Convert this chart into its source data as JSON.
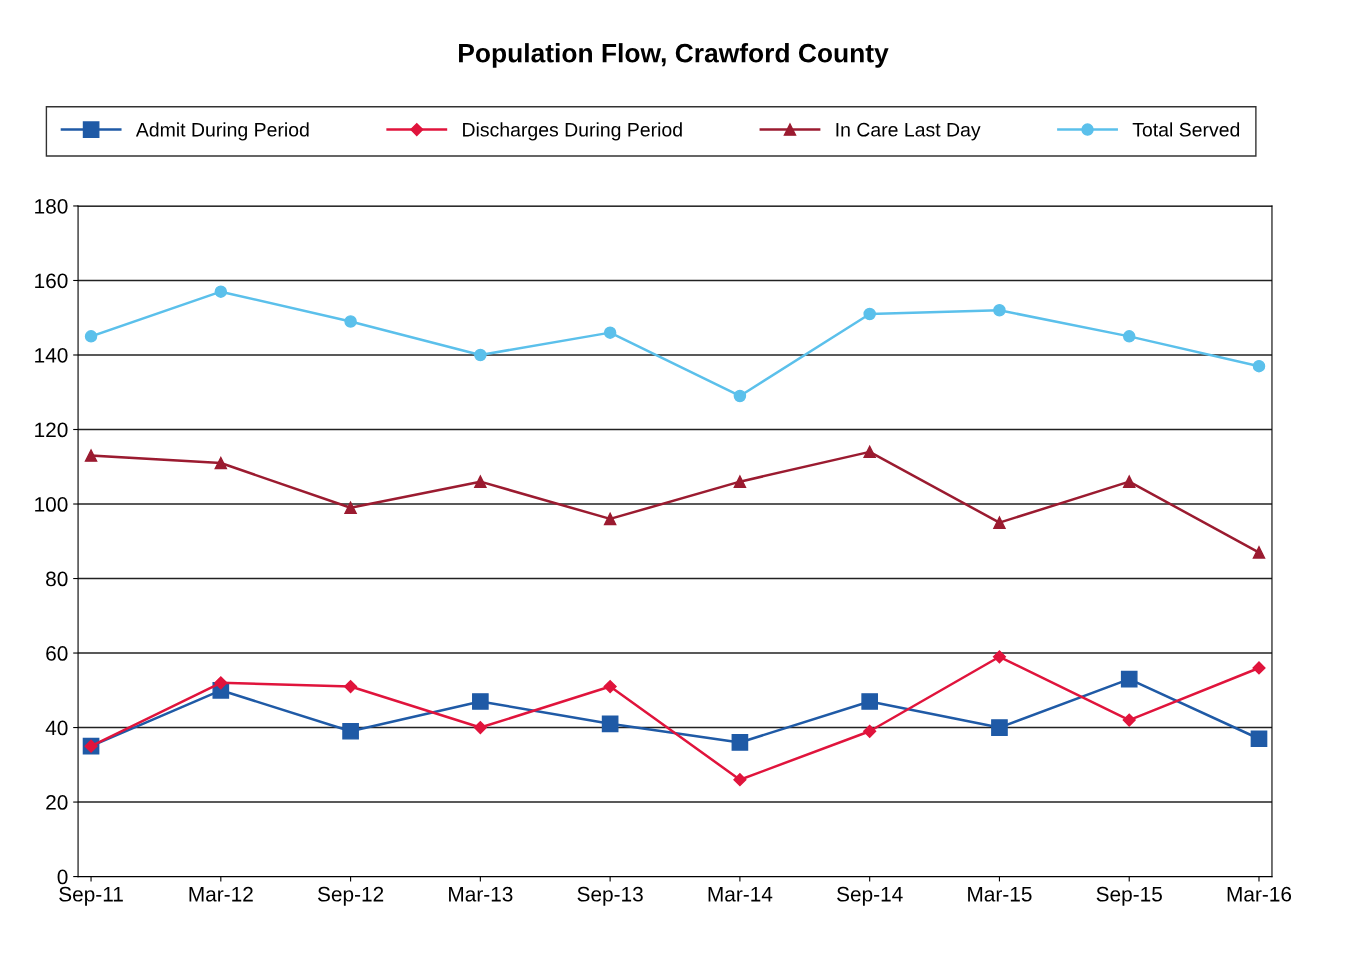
{
  "chart_data": {
    "type": "line",
    "title": "Population Flow, Crawford County",
    "categories": [
      "Sep-11",
      "Mar-12",
      "Sep-12",
      "Mar-13",
      "Sep-13",
      "Mar-14",
      "Sep-14",
      "Mar-15",
      "Sep-15",
      "Mar-16"
    ],
    "series": [
      {
        "name": "Admit During Period",
        "color": "#1f5aa6",
        "marker": "square",
        "values": [
          35,
          50,
          39,
          47,
          41,
          36,
          47,
          40,
          53,
          37
        ]
      },
      {
        "name": "Discharges During Period",
        "color": "#e0143c",
        "marker": "diamond",
        "values": [
          35,
          52,
          51,
          40,
          51,
          26,
          39,
          59,
          42,
          56
        ]
      },
      {
        "name": "In Care Last Day",
        "color": "#9b1b30",
        "marker": "triangle",
        "values": [
          113,
          111,
          99,
          106,
          96,
          106,
          114,
          95,
          106,
          87
        ]
      },
      {
        "name": "Total Served",
        "color": "#5bc0eb",
        "marker": "circle",
        "values": [
          145,
          157,
          149,
          140,
          146,
          129,
          151,
          152,
          145,
          137
        ]
      }
    ],
    "ylim": [
      0,
      180
    ],
    "yticks": [
      0,
      20,
      40,
      60,
      80,
      100,
      120,
      140,
      160,
      180
    ],
    "grid": "y",
    "legend": "top",
    "line_style": "solid"
  }
}
